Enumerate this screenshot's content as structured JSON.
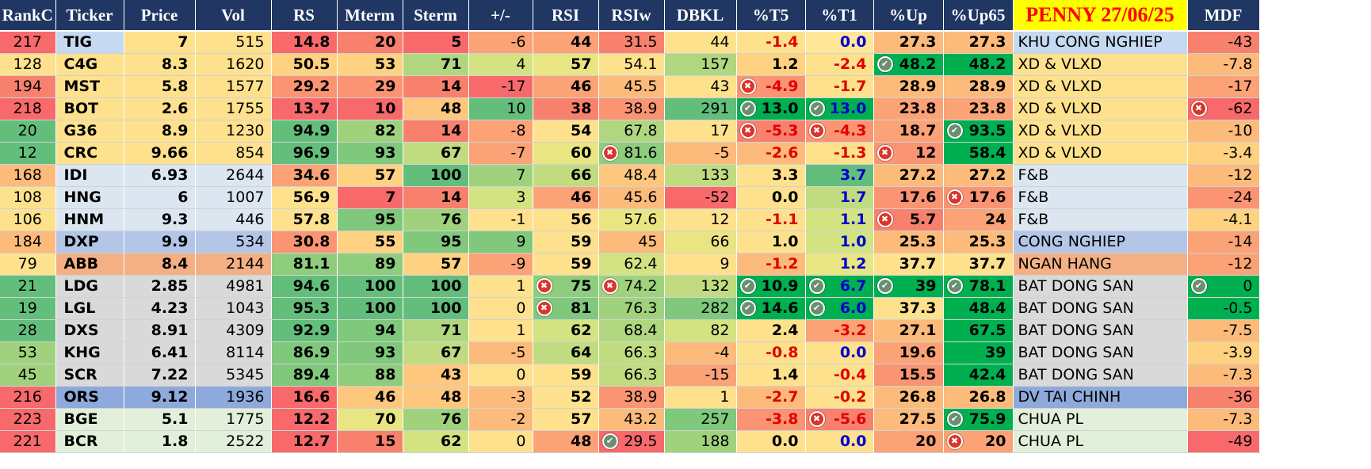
{
  "sheet": {
    "columns": [
      "RankC",
      "Ticker",
      "Price",
      "Vol",
      "RS",
      "Mterm",
      "Sterm",
      "+/-",
      "RSI",
      "RSIw",
      "DBKL",
      "%T5",
      "%T1",
      "%Up",
      "%Up65",
      "PENNY 27/06/25",
      "MDF"
    ],
    "rows": [
      {
        "cells": [
          "217",
          "TIG",
          "7",
          "515",
          "14.8",
          "20",
          "5",
          "-6",
          "44",
          "31.5",
          "44",
          "-1.4",
          "0.0",
          "27.3",
          "27.3",
          "KHU CONG NGHIEP",
          "-43"
        ],
        "bg": [
          "#f8696b",
          "#c5d9f1",
          "#fee18d",
          "#fee18d",
          "#f8696b",
          "#f8816e",
          "#f8696b",
          "#fba276",
          "#fba276",
          "#f8816e",
          "#fee18d",
          "#fee18d",
          "#ffe699",
          "#fcbb7b",
          "#fcbb7b",
          "#c5d9f1",
          "#f8816e"
        ],
        "color": {
          "11": "#e00000",
          "12": "#0000cc"
        },
        "icons": {}
      },
      {
        "cells": [
          "128",
          "C4G",
          "8.3",
          "1620",
          "50.5",
          "53",
          "71",
          "4",
          "57",
          "54.1",
          "157",
          "1.2",
          "-2.4",
          "48.2",
          "48.2",
          "XD & VLXD",
          "-7.8"
        ],
        "bg": [
          "#fee18d",
          "#fee18d",
          "#fee18d",
          "#fee18d",
          "#fed281",
          "#fed281",
          "#b0d77f",
          "#d3e382",
          "#e9e583",
          "#fee18d",
          "#b0d77f",
          "#fed281",
          "#fee18d",
          "#00b050",
          "#00b050",
          "#fee18d",
          "#fcbb7b"
        ],
        "color": {
          "12": "#e00000"
        },
        "icons": {
          "13": "check"
        }
      },
      {
        "cells": [
          "194",
          "MST",
          "5.8",
          "1577",
          "29.2",
          "29",
          "14",
          "-17",
          "46",
          "45.5",
          "43",
          "-4.9",
          "-1.7",
          "28.9",
          "28.9",
          "XD & VLXD",
          "-17"
        ],
        "bg": [
          "#f8816e",
          "#fee18d",
          "#fee18d",
          "#fee18d",
          "#fa9473",
          "#fa9473",
          "#f8816e",
          "#f8696b",
          "#fba276",
          "#fcbb7b",
          "#fee18d",
          "#fa9473",
          "#fee18d",
          "#fcbb7b",
          "#fcbb7b",
          "#fee18d",
          "#fba276"
        ],
        "color": {
          "11": "#e00000",
          "12": "#e00000"
        },
        "icons": {
          "11": "x"
        }
      },
      {
        "cells": [
          "218",
          "BOT",
          "2.6",
          "1755",
          "13.7",
          "10",
          "48",
          "10",
          "38",
          "38.9",
          "291",
          "13.0",
          "13.0",
          "23.8",
          "23.8",
          "XD & VLXD",
          "-62"
        ],
        "bg": [
          "#f8696b",
          "#fee18d",
          "#fee18d",
          "#fee18d",
          "#f8696b",
          "#f8696b",
          "#fdc77e",
          "#63be7b",
          "#f8816e",
          "#fa9473",
          "#63be7b",
          "#00b050",
          "#00b050",
          "#fba276",
          "#fba276",
          "#fee18d",
          "#f8696b"
        ],
        "color": {
          "12": "#0000cc"
        },
        "icons": {
          "11": "check",
          "12": "check",
          "16": "x"
        }
      },
      {
        "cells": [
          "20",
          "G36",
          "8.9",
          "1230",
          "94.9",
          "82",
          "14",
          "-8",
          "54",
          "67.8",
          "17",
          "-5.3",
          "-4.3",
          "18.7",
          "93.5",
          "XD & VLXD",
          "-10"
        ],
        "bg": [
          "#63be7b",
          "#fee18d",
          "#fee18d",
          "#fee18d",
          "#63be7b",
          "#a0d27e",
          "#f8816e",
          "#fba276",
          "#fee18d",
          "#b0d77f",
          "#fee18d",
          "#f8816e",
          "#fa9473",
          "#fba276",
          "#00b050",
          "#fee18d",
          "#fcbb7b"
        ],
        "color": {
          "11": "#e00000",
          "12": "#e00000"
        },
        "icons": {
          "11": "x",
          "12": "x",
          "14": "check"
        }
      },
      {
        "cells": [
          "12",
          "CRC",
          "9.66",
          "854",
          "96.9",
          "93",
          "67",
          "-7",
          "60",
          "81.6",
          "-5",
          "-2.6",
          "-1.3",
          "12",
          "58.4",
          "XD & VLXD",
          "-3.4"
        ],
        "bg": [
          "#63be7b",
          "#fee18d",
          "#fee18d",
          "#fee18d",
          "#63be7b",
          "#7fc87c",
          "#c1dc80",
          "#fba276",
          "#e9e583",
          "#8dcd7d",
          "#fcbb7b",
          "#fcbb7b",
          "#fee18d",
          "#fa9473",
          "#00b050",
          "#fee18d",
          "#fed281"
        ],
        "color": {
          "11": "#e00000",
          "12": "#e00000"
        },
        "icons": {
          "9": "x",
          "13": "x"
        }
      },
      {
        "cells": [
          "168",
          "IDI",
          "6.93",
          "2644",
          "34.6",
          "57",
          "100",
          "7",
          "66",
          "48.4",
          "133",
          "3.3",
          "3.7",
          "27.2",
          "27.2",
          "F&B",
          "-12"
        ],
        "bg": [
          "#fcbb7b",
          "#dce6f1",
          "#dce6f1",
          "#dce6f1",
          "#fba276",
          "#fed281",
          "#63be7b",
          "#a0d27e",
          "#c1dc80",
          "#fdc77e",
          "#c1dc80",
          "#fee18d",
          "#63be7b",
          "#fcbb7b",
          "#fcbb7b",
          "#dce6f1",
          "#fcbb7b"
        ],
        "color": {
          "12": "#0000cc"
        },
        "icons": {}
      },
      {
        "cells": [
          "108",
          "HNG",
          "6",
          "1007",
          "56.9",
          "7",
          "14",
          "3",
          "46",
          "45.6",
          "-52",
          "0.0",
          "1.7",
          "17.6",
          "17.6",
          "F&B",
          "-24"
        ],
        "bg": [
          "#fee18d",
          "#dce6f1",
          "#dce6f1",
          "#dce6f1",
          "#fee18d",
          "#f8696b",
          "#f8816e",
          "#d3e382",
          "#fba276",
          "#fcbb7b",
          "#f8696b",
          "#fee18d",
          "#c1dc80",
          "#fa9473",
          "#fa9473",
          "#dce6f1",
          "#fa9473"
        ],
        "color": {
          "12": "#0000cc"
        },
        "icons": {
          "14": "x"
        }
      },
      {
        "cells": [
          "106",
          "HNM",
          "9.3",
          "446",
          "57.8",
          "95",
          "76",
          "-1",
          "56",
          "57.6",
          "12",
          "-1.1",
          "1.1",
          "5.7",
          "24",
          "F&B",
          "-4.1"
        ],
        "bg": [
          "#fee18d",
          "#dce6f1",
          "#dce6f1",
          "#dce6f1",
          "#fee18d",
          "#7fc87c",
          "#a0d27e",
          "#fee18d",
          "#fee18d",
          "#e9e583",
          "#fee18d",
          "#fee18d",
          "#d3e382",
          "#f8816e",
          "#fba276",
          "#dce6f1",
          "#fed281"
        ],
        "color": {
          "11": "#e00000",
          "12": "#0000cc"
        },
        "icons": {
          "13": "x"
        }
      },
      {
        "cells": [
          "184",
          "DXP",
          "9.9",
          "534",
          "30.8",
          "55",
          "95",
          "9",
          "59",
          "45",
          "66",
          "1.0",
          "1.0",
          "25.3",
          "25.3",
          "CONG NGHIEP",
          "-14"
        ],
        "bg": [
          "#fcbb7b",
          "#b4c6e7",
          "#b4c6e7",
          "#b4c6e7",
          "#fa9473",
          "#fed281",
          "#7fc87c",
          "#7fc87c",
          "#fee18d",
          "#fcbb7b",
          "#e9e583",
          "#fee18d",
          "#d3e382",
          "#fcbb7b",
          "#fcbb7b",
          "#b4c6e7",
          "#fba276"
        ],
        "color": {
          "12": "#0000cc"
        },
        "icons": {}
      },
      {
        "cells": [
          "79",
          "ABB",
          "8.4",
          "2144",
          "81.1",
          "89",
          "57",
          "-9",
          "59",
          "62.4",
          "9",
          "-1.2",
          "1.2",
          "37.7",
          "37.7",
          "NGAN HANG",
          "-12"
        ],
        "bg": [
          "#fee18d",
          "#f4b084",
          "#f4b084",
          "#f4b084",
          "#8dcd7d",
          "#8dcd7d",
          "#fed281",
          "#fba276",
          "#fee18d",
          "#d3e382",
          "#fee18d",
          "#fcbb7b",
          "#e9e583",
          "#fee18d",
          "#fee18d",
          "#f4b084",
          "#fba276"
        ],
        "color": {
          "11": "#e00000",
          "12": "#0000cc"
        },
        "icons": {}
      },
      {
        "cells": [
          "21",
          "LDG",
          "2.85",
          "4981",
          "94.6",
          "100",
          "100",
          "1",
          "75",
          "74.2",
          "132",
          "10.9",
          "6.7",
          "39",
          "78.1",
          "BAT DONG SAN",
          "0"
        ],
        "bg": [
          "#63be7b",
          "#d9d9d9",
          "#d9d9d9",
          "#d9d9d9",
          "#63be7b",
          "#63be7b",
          "#63be7b",
          "#fee18d",
          "#8dcd7d",
          "#a0d27e",
          "#c1dc80",
          "#00b050",
          "#00b050",
          "#00b050",
          "#00b050",
          "#d9d9d9",
          "#00b050"
        ],
        "color": {
          "12": "#0000cc"
        },
        "icons": {
          "8": "x",
          "9": "x",
          "11": "check",
          "12": "check",
          "13": "check",
          "14": "check",
          "16": "check"
        }
      },
      {
        "cells": [
          "19",
          "LGL",
          "4.23",
          "1043",
          "95.3",
          "100",
          "100",
          "0",
          "81",
          "76.3",
          "282",
          "14.6",
          "6.0",
          "37.3",
          "48.4",
          "BAT DONG SAN",
          "-0.5"
        ],
        "bg": [
          "#63be7b",
          "#d9d9d9",
          "#d9d9d9",
          "#d9d9d9",
          "#63be7b",
          "#63be7b",
          "#63be7b",
          "#fee18d",
          "#7fc87c",
          "#a0d27e",
          "#7fc87c",
          "#00b050",
          "#00b050",
          "#fee18d",
          "#00b050",
          "#d9d9d9",
          "#00b050"
        ],
        "color": {
          "12": "#0000cc"
        },
        "icons": {
          "8": "x",
          "11": "check",
          "12": "check"
        }
      },
      {
        "cells": [
          "28",
          "DXS",
          "8.91",
          "4309",
          "92.9",
          "94",
          "71",
          "1",
          "62",
          "68.4",
          "82",
          "2.4",
          "-3.2",
          "27.1",
          "67.5",
          "BAT DONG SAN",
          "-7.5"
        ],
        "bg": [
          "#63be7b",
          "#d9d9d9",
          "#d9d9d9",
          "#d9d9d9",
          "#63be7b",
          "#7fc87c",
          "#b0d77f",
          "#fee18d",
          "#d3e382",
          "#b0d77f",
          "#d3e382",
          "#fee18d",
          "#fba276",
          "#fcbb7b",
          "#00b050",
          "#d9d9d9",
          "#fcbb7b"
        ],
        "color": {
          "12": "#e00000"
        },
        "icons": {}
      },
      {
        "cells": [
          "53",
          "KHG",
          "6.41",
          "8114",
          "86.9",
          "93",
          "67",
          "-5",
          "64",
          "66.3",
          "-4",
          "-0.8",
          "0.0",
          "19.6",
          "39",
          "BAT DONG SAN",
          "-3.9"
        ],
        "bg": [
          "#a0d27e",
          "#d9d9d9",
          "#d9d9d9",
          "#d9d9d9",
          "#7fc87c",
          "#7fc87c",
          "#c1dc80",
          "#fcbb7b",
          "#c1dc80",
          "#c1dc80",
          "#fcbb7b",
          "#fee18d",
          "#fee18d",
          "#fba276",
          "#00b050",
          "#d9d9d9",
          "#fed281"
        ],
        "color": {
          "11": "#e00000",
          "12": "#0000cc"
        },
        "icons": {}
      },
      {
        "cells": [
          "45",
          "SCR",
          "7.22",
          "5345",
          "89.4",
          "88",
          "43",
          "0",
          "59",
          "66.3",
          "-15",
          "1.4",
          "-0.4",
          "15.5",
          "42.4",
          "BAT DONG SAN",
          "-7.3"
        ],
        "bg": [
          "#a0d27e",
          "#d9d9d9",
          "#d9d9d9",
          "#d9d9d9",
          "#7fc87c",
          "#8dcd7d",
          "#fdc77e",
          "#fee18d",
          "#fee18d",
          "#c1dc80",
          "#fba276",
          "#fee18d",
          "#fee18d",
          "#fa9473",
          "#00b050",
          "#d9d9d9",
          "#fcbb7b"
        ],
        "color": {
          "12": "#e00000"
        },
        "icons": {}
      },
      {
        "cells": [
          "216",
          "ORS",
          "9.12",
          "1936",
          "16.6",
          "46",
          "48",
          "-3",
          "52",
          "38.9",
          "1",
          "-2.7",
          "-0.2",
          "26.8",
          "26.8",
          "DV TAI CHINH",
          "-36"
        ],
        "bg": [
          "#f8696b",
          "#8ea9db",
          "#8ea9db",
          "#8ea9db",
          "#f8696b",
          "#fdc77e",
          "#fdc77e",
          "#fcbb7b",
          "#fee18d",
          "#fa9473",
          "#fee18d",
          "#fcbb7b",
          "#fee18d",
          "#fcbb7b",
          "#fcbb7b",
          "#8ea9db",
          "#f8816e"
        ],
        "color": {
          "11": "#e00000",
          "12": "#e00000"
        },
        "icons": {}
      },
      {
        "cells": [
          "223",
          "BGE",
          "5.1",
          "1775",
          "12.2",
          "70",
          "76",
          "-2",
          "57",
          "43.2",
          "257",
          "-3.8",
          "-5.6",
          "27.5",
          "75.9",
          "CHUA PL",
          "-7.3"
        ],
        "bg": [
          "#f8696b",
          "#e2efda",
          "#e2efda",
          "#e2efda",
          "#f8696b",
          "#e9e583",
          "#a0d27e",
          "#fcbb7b",
          "#fee18d",
          "#fcbb7b",
          "#7fc87c",
          "#fa9473",
          "#f8816e",
          "#fcbb7b",
          "#00b050",
          "#e2efda",
          "#fcbb7b"
        ],
        "color": {
          "11": "#e00000",
          "12": "#e00000"
        },
        "icons": {
          "12": "x",
          "14": "check"
        }
      },
      {
        "cells": [
          "221",
          "BCR",
          "1.8",
          "2522",
          "12.7",
          "15",
          "62",
          "0",
          "48",
          "29.5",
          "188",
          "0.0",
          "0.0",
          "20",
          "20",
          "CHUA PL",
          "-49"
        ],
        "bg": [
          "#f8696b",
          "#e2efda",
          "#e2efda",
          "#e2efda",
          "#f8696b",
          "#f8816e",
          "#d3e382",
          "#fee18d",
          "#fba276",
          "#f8696b",
          "#a0d27e",
          "#fee18d",
          "#fee18d",
          "#fba276",
          "#fba276",
          "#e2efda",
          "#f8696b"
        ],
        "color": {
          "12": "#0000cc"
        },
        "icons": {
          "9": "check",
          "14": "x"
        }
      }
    ]
  }
}
